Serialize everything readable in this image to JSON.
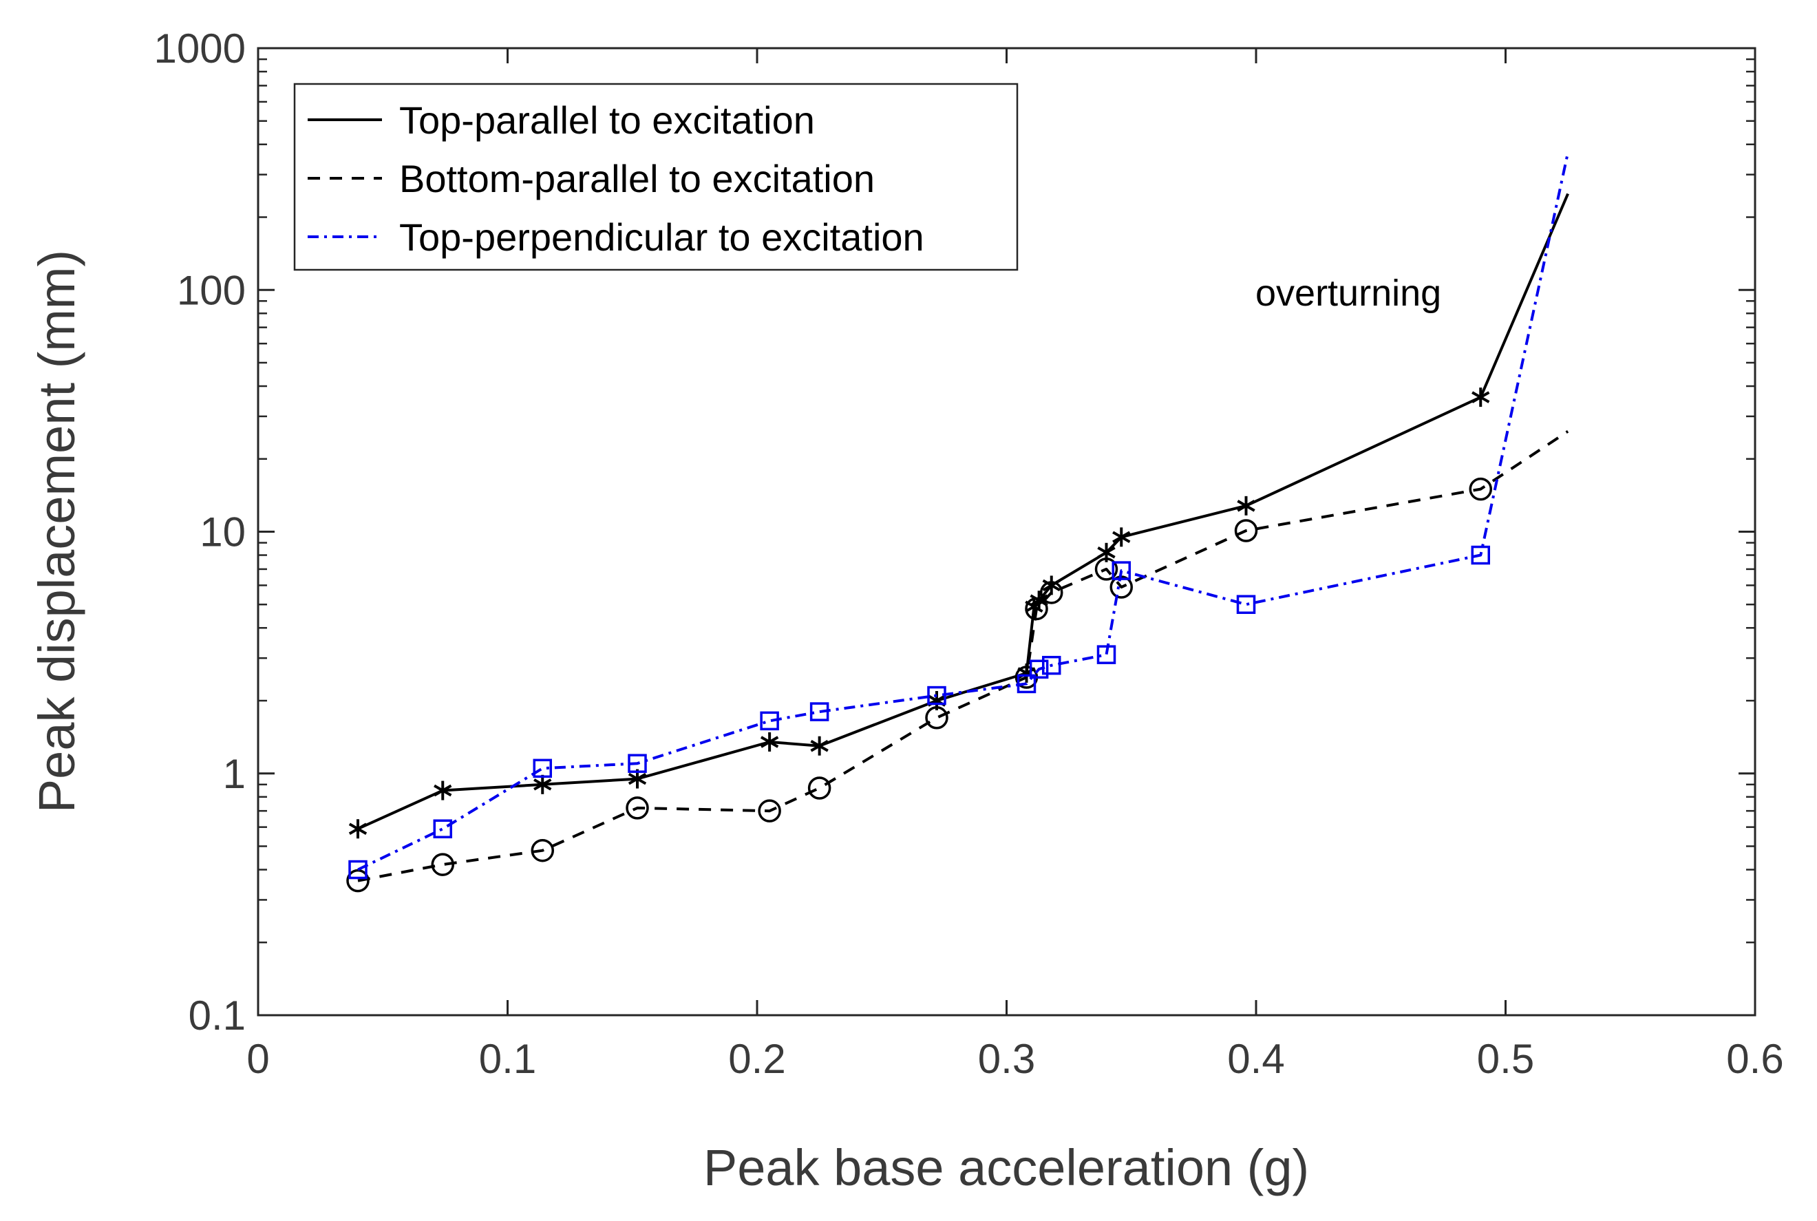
{
  "chart_data": {
    "type": "line",
    "title": "",
    "xlabel": "Peak base acceleration (g)",
    "ylabel": "Peak displacement (mm)",
    "xlim": [
      0,
      0.6
    ],
    "ylim": [
      0.1,
      1000
    ],
    "yscale": "log",
    "grid": false,
    "legend_position": "top-left",
    "x_ticks": [
      0,
      0.1,
      0.2,
      0.3,
      0.4,
      0.5,
      0.6
    ],
    "x_tick_labels": [
      "0",
      "0.1",
      "0.2",
      "0.3",
      "0.4",
      "0.5",
      "0.6"
    ],
    "y_ticks": [
      0.1,
      1,
      10,
      100,
      1000
    ],
    "y_tick_labels": [
      "0.1",
      "1",
      "10",
      "100",
      "1000"
    ],
    "series": [
      {
        "name": "Top-parallel to excitation",
        "color": "#000000",
        "line_style": "solid",
        "marker": "asterisk",
        "x": [
          0.04,
          0.074,
          0.114,
          0.152,
          0.205,
          0.225,
          0.272,
          0.308,
          0.311,
          0.313,
          0.318,
          0.34,
          0.346,
          0.396,
          0.49,
          0.525
        ],
        "y": [
          0.59,
          0.85,
          0.9,
          0.95,
          1.35,
          1.3,
          2.0,
          2.6,
          4.9,
          5.2,
          6.0,
          8.2,
          9.5,
          12.8,
          36,
          250
        ],
        "markers_mask": [
          true,
          true,
          true,
          true,
          true,
          true,
          true,
          true,
          true,
          true,
          true,
          true,
          true,
          true,
          true,
          false
        ]
      },
      {
        "name": "Bottom-parallel to excitation",
        "color": "#000000",
        "line_style": "dashed",
        "marker": "circle",
        "x": [
          0.04,
          0.074,
          0.114,
          0.152,
          0.205,
          0.225,
          0.272,
          0.308,
          0.312,
          0.318,
          0.34,
          0.346,
          0.396,
          0.49,
          0.525
        ],
        "y": [
          0.36,
          0.42,
          0.48,
          0.72,
          0.7,
          0.87,
          1.7,
          2.5,
          4.8,
          5.6,
          7.0,
          5.9,
          10.1,
          15,
          26
        ],
        "markers_mask": [
          true,
          true,
          true,
          true,
          true,
          true,
          true,
          true,
          true,
          true,
          true,
          true,
          true,
          true,
          false
        ]
      },
      {
        "name": "Top-perpendicular to excitation",
        "color": "#0000ee",
        "line_style": "dashdot",
        "marker": "square",
        "x": [
          0.04,
          0.074,
          0.114,
          0.152,
          0.205,
          0.225,
          0.272,
          0.308,
          0.313,
          0.318,
          0.34,
          0.346,
          0.396,
          0.49,
          0.525
        ],
        "y": [
          0.4,
          0.59,
          1.05,
          1.1,
          1.65,
          1.8,
          2.1,
          2.35,
          2.7,
          2.8,
          3.1,
          6.9,
          5.0,
          8.0,
          370
        ],
        "markers_mask": [
          true,
          true,
          true,
          true,
          true,
          true,
          true,
          true,
          true,
          true,
          true,
          true,
          true,
          true,
          false
        ]
      }
    ],
    "annotations": [
      {
        "text": "overturning",
        "x": 0.401,
        "y": 100
      }
    ]
  }
}
